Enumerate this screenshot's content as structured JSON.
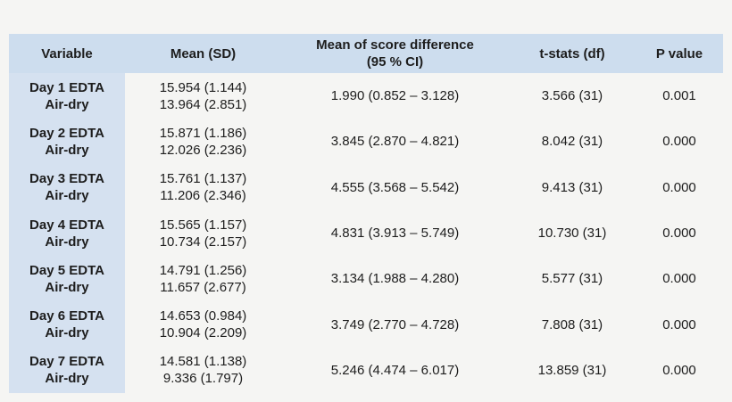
{
  "page": {
    "background_color": "#f5f5f3",
    "header_bg_color": "#cdddee",
    "first_column_bg_color": "#d5e1f0"
  },
  "table": {
    "header": {
      "variable": "Variable",
      "mean_sd": "Mean (SD)",
      "diff_line1": "Mean of score difference",
      "diff_line2": "(95 % CI)",
      "t_stats": "t-stats (df)",
      "p_value": "P value"
    },
    "rows": [
      {
        "variable": [
          "Day 1 EDTA",
          "Air-dry"
        ],
        "mean_sd": [
          "15.954 (1.144)",
          "13.964 (2.851)"
        ],
        "diff": "1.990 (0.852 – 3.128)",
        "t_stats": "3.566 (31)",
        "p_value": "0.001"
      },
      {
        "variable": [
          "Day 2 EDTA",
          "Air-dry"
        ],
        "mean_sd": [
          "15.871 (1.186)",
          "12.026 (2.236)"
        ],
        "diff": "3.845 (2.870 – 4.821)",
        "t_stats": "8.042 (31)",
        "p_value": "0.000"
      },
      {
        "variable": [
          "Day 3 EDTA",
          "Air-dry"
        ],
        "mean_sd": [
          "15.761 (1.137)",
          "11.206 (2.346)"
        ],
        "diff": "4.555 (3.568 – 5.542)",
        "t_stats": "9.413 (31)",
        "p_value": "0.000"
      },
      {
        "variable": [
          "Day 4 EDTA",
          "Air-dry"
        ],
        "mean_sd": [
          "15.565 (1.157)",
          "10.734 (2.157)"
        ],
        "diff": "4.831 (3.913 – 5.749)",
        "t_stats": "10.730 (31)",
        "p_value": "0.000"
      },
      {
        "variable": [
          "Day 5 EDTA",
          "Air-dry"
        ],
        "mean_sd": [
          "14.791 (1.256)",
          "11.657 (2.677)"
        ],
        "diff": "3.134 (1.988 – 4.280)",
        "t_stats": "5.577 (31)",
        "p_value": "0.000"
      },
      {
        "variable": [
          "Day 6 EDTA",
          "Air-dry"
        ],
        "mean_sd": [
          "14.653 (0.984)",
          "10.904 (2.209)"
        ],
        "diff": "3.749 (2.770 – 4.728)",
        "t_stats": "7.808 (31)",
        "p_value": "0.000"
      },
      {
        "variable": [
          "Day 7 EDTA",
          "Air-dry"
        ],
        "mean_sd": [
          "14.581 (1.138)",
          "9.336 (1.797)"
        ],
        "diff": "5.246 (4.474 – 6.017)",
        "t_stats": "13.859 (31)",
        "p_value": "0.000"
      }
    ]
  }
}
